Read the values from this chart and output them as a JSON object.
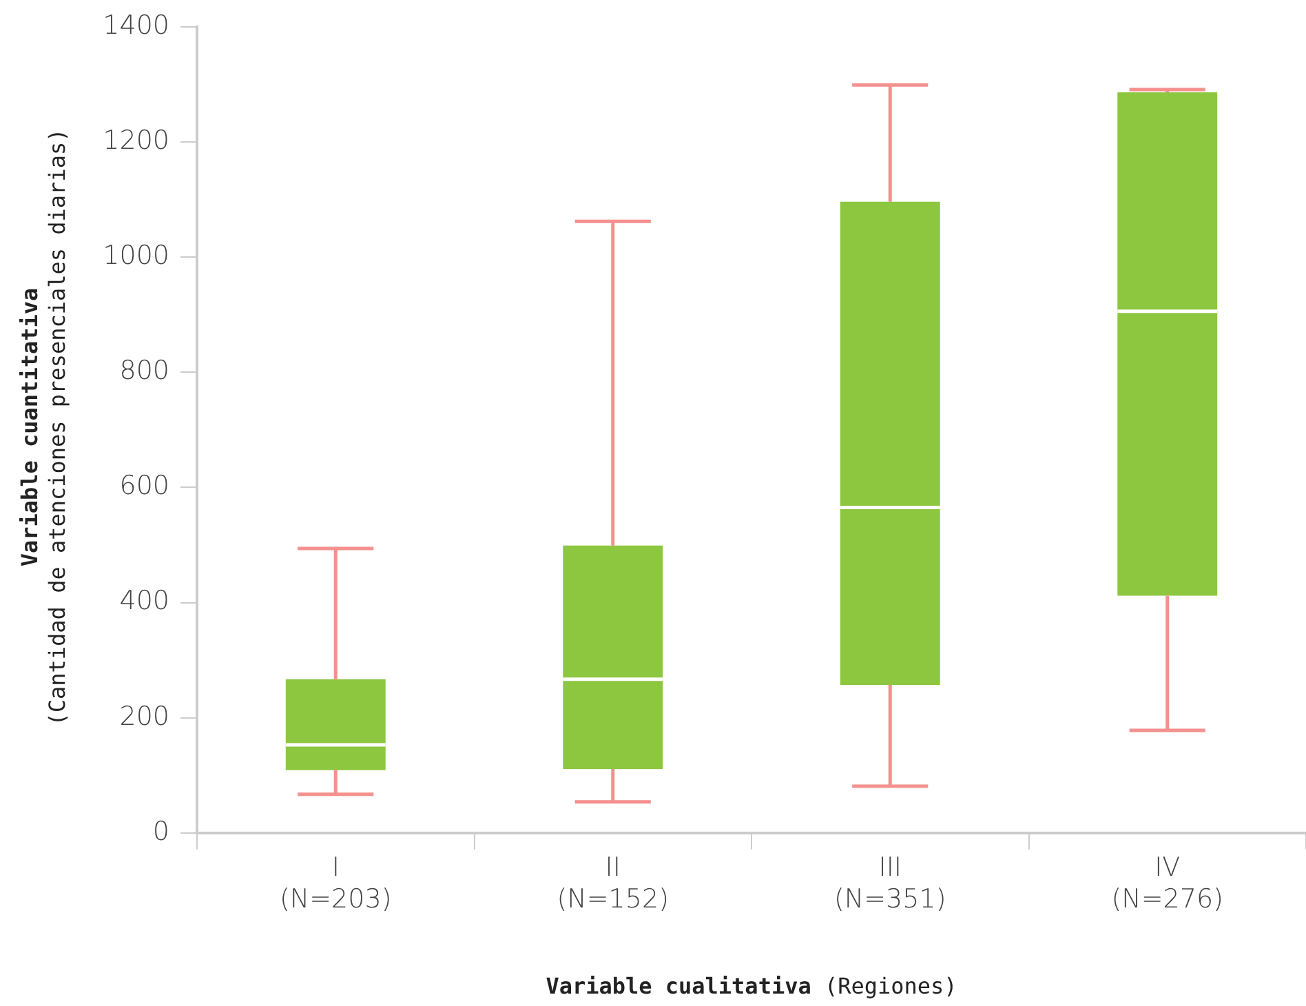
{
  "chart_data": {
    "type": "box",
    "xlabel": "Variable cualitativa (Regiones)",
    "ylabel": "Variable cuantitativa\n(Cantidad de atenciones presenciales diarias)",
    "categories": [
      "I\n(N=203)",
      "II\n(N=152)",
      "III\n(N=351)",
      "IV\n(N=276)"
    ],
    "color": "#8dc63f",
    "boxes": [
      {
        "low": 67,
        "q1": 109,
        "median": 153,
        "q3": 267,
        "high": 494
      },
      {
        "low": 54,
        "q1": 111,
        "median": 267,
        "q3": 499,
        "high": 1062
      },
      {
        "low": 81,
        "q1": 257,
        "median": 565,
        "q3": 1096,
        "high": 1299
      },
      {
        "low": 178,
        "q1": 412,
        "median": 906,
        "q3": 1286,
        "high": 1291
      }
    ],
    "ylim": [
      0,
      1400
    ],
    "yticks": [
      0,
      200,
      400,
      600,
      800,
      1000,
      1200,
      1400
    ],
    "grid": false,
    "legend": false
  }
}
